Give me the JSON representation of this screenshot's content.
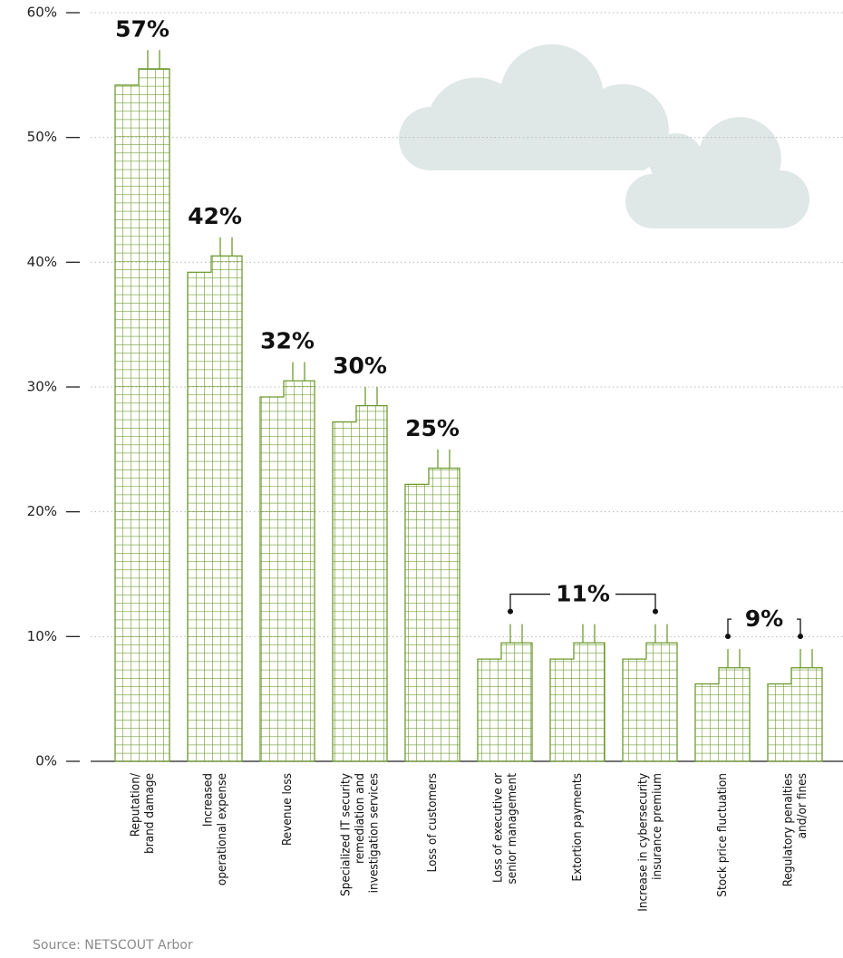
{
  "chart_data": {
    "type": "bar",
    "categories": [
      [
        "Reputation/",
        "brand damage"
      ],
      [
        "Increased",
        "operational expense"
      ],
      [
        "Revenue loss"
      ],
      [
        "Specialized IT security",
        "remediation and",
        "investigation services"
      ],
      [
        "Loss of customers"
      ],
      [
        "Loss of executive or",
        "senior management"
      ],
      [
        "Extortion payments"
      ],
      [
        "Increase in cybersecurity",
        "insurance premium"
      ],
      [
        "Stock price fluctuation"
      ],
      [
        "Regulatory penalties",
        "and/or fines"
      ]
    ],
    "values": [
      57,
      42,
      32,
      30,
      25,
      11,
      11,
      11,
      9,
      9
    ],
    "value_labels": [
      "57%",
      "42%",
      "32%",
      "30%",
      "25%",
      null,
      "11%",
      null,
      "9%",
      null
    ],
    "color": "#6f9a2f",
    "ylim": [
      0,
      60
    ],
    "yticks": [
      {
        "value": 0,
        "label": "0%"
      },
      {
        "value": 10,
        "label": "10%"
      },
      {
        "value": 20,
        "label": "20%"
      },
      {
        "value": 30,
        "label": "30%"
      },
      {
        "value": 40,
        "label": "40%"
      },
      {
        "value": 50,
        "label": "50%"
      },
      {
        "value": 60,
        "label": "60%"
      }
    ],
    "grid": true,
    "source": "Source: NETSCOUT Arbor"
  }
}
